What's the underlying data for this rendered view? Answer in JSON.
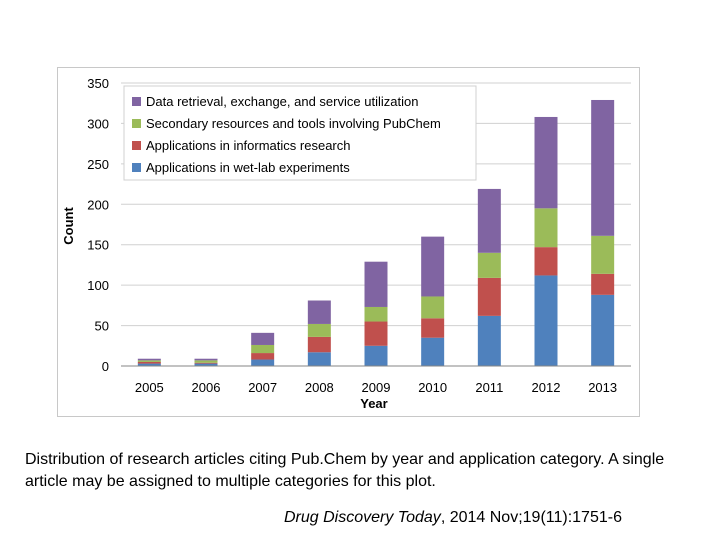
{
  "chart_data": {
    "type": "bar",
    "stacked": true,
    "categories": [
      "2005",
      "2006",
      "2007",
      "2008",
      "2009",
      "2010",
      "2011",
      "2012",
      "2013"
    ],
    "series": [
      {
        "name": "Applications in wet-lab experiments",
        "color": "#4f81bd",
        "values": [
          3,
          3,
          8,
          17,
          25,
          35,
          62,
          112,
          88
        ]
      },
      {
        "name": "Applications in informatics research",
        "color": "#c0504d",
        "values": [
          2,
          1,
          8,
          19,
          30,
          24,
          47,
          35,
          26
        ]
      },
      {
        "name": "Secondary resources and tools involving PubChem",
        "color": "#9bbb59",
        "values": [
          2,
          3,
          10,
          16,
          18,
          27,
          31,
          48,
          47
        ]
      },
      {
        "name": "Data retrieval, exchange, and service utilization",
        "color": "#8064a2",
        "values": [
          2,
          2,
          15,
          29,
          56,
          74,
          79,
          113,
          168
        ]
      }
    ],
    "ylabel": "Count",
    "xlabel": "Year",
    "ylim": [
      0,
      350
    ],
    "yticks": [
      0,
      50,
      100,
      150,
      200,
      250,
      300,
      350
    ],
    "grid": true,
    "legend_position": "top-left"
  },
  "caption": {
    "text": "Distribution of research articles citing Pub.Chem by year and application category. A single article may be assigned to multiple categories for this plot."
  },
  "source": {
    "journal": "Drug Discovery Today",
    "citation": ", 2014 Nov;19(11):1751-6"
  }
}
